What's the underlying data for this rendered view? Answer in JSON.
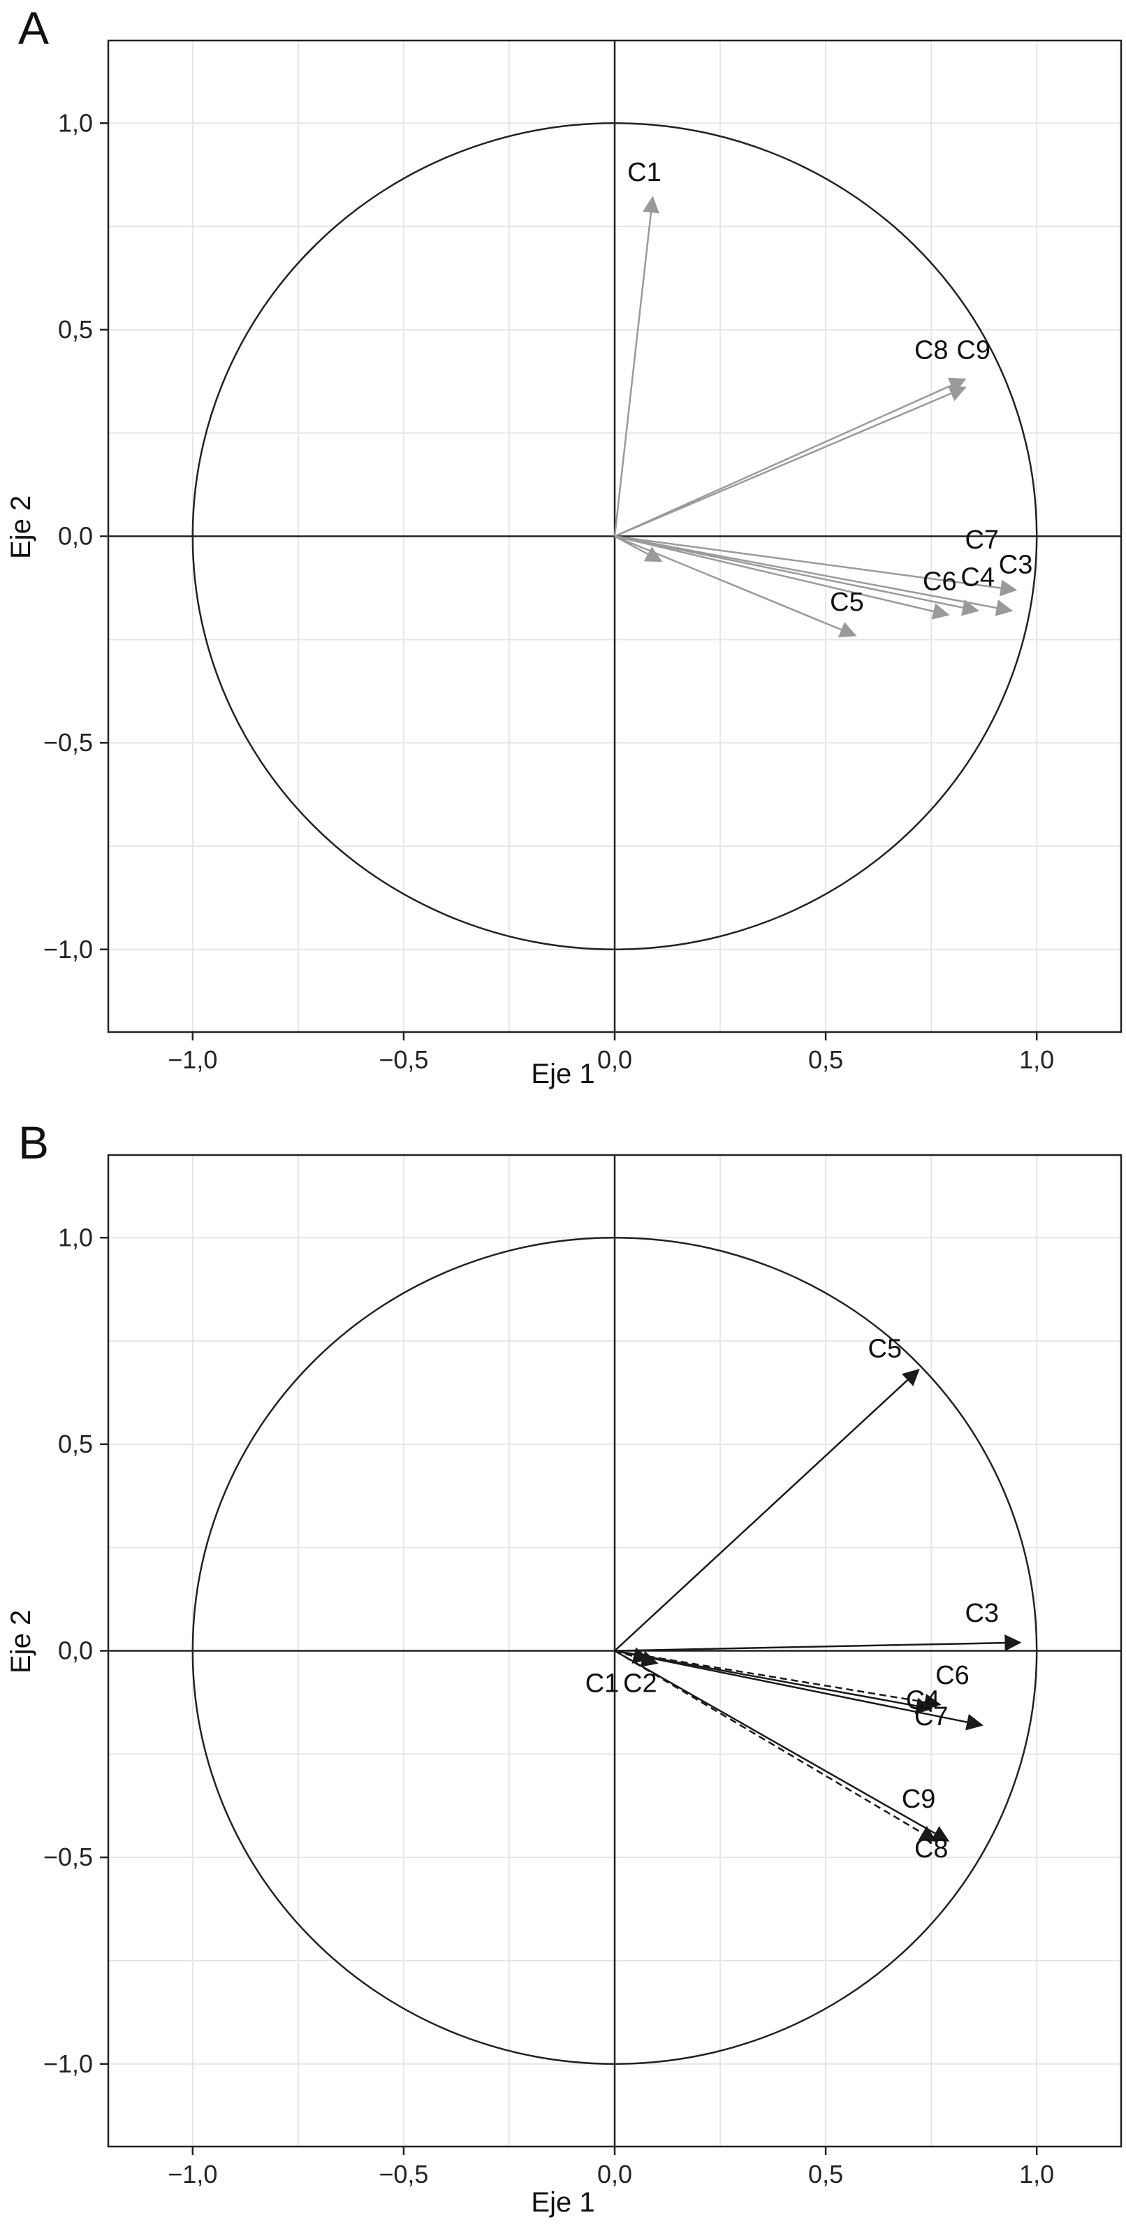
{
  "chart_data": [
    {
      "type": "scatter",
      "panel_label": "A",
      "xlabel": "Eje 1",
      "ylabel": "Eje 2",
      "xlim": [
        -1.2,
        1.2
      ],
      "ylim": [
        -1.2,
        1.2
      ],
      "xticks": [
        -1.0,
        -0.5,
        0.0,
        0.5,
        1.0
      ],
      "xtick_labels": [
        "−1,0",
        "−0,5",
        "0,0",
        "0,5",
        "1,0"
      ],
      "yticks": [
        -1.0,
        -0.5,
        0.0,
        0.5,
        1.0
      ],
      "ytick_labels": [
        "−1,0",
        "−0,5",
        "0,0",
        "0,5",
        "1,0"
      ],
      "grid": true,
      "unit_circle": true,
      "arrow_color": "#9a9a9a",
      "vectors": [
        {
          "label": "C1",
          "x": 0.09,
          "y": 0.82
        },
        {
          "label": "C2",
          "x": 0.11,
          "y": -0.06
        },
        {
          "label": "C3",
          "x": 0.94,
          "y": -0.18
        },
        {
          "label": "C4",
          "x": 0.86,
          "y": -0.18
        },
        {
          "label": "C5",
          "x": 0.57,
          "y": -0.24
        },
        {
          "label": "C6",
          "x": 0.79,
          "y": -0.19
        },
        {
          "label": "C7",
          "x": 0.95,
          "y": -0.13
        },
        {
          "label": "C8",
          "x": 0.83,
          "y": 0.38
        },
        {
          "label": "C9",
          "x": 0.83,
          "y": 0.36
        }
      ],
      "labels": [
        {
          "text": "C1",
          "x": 0.03,
          "y": 0.86
        },
        {
          "text": "C8",
          "x": 0.71,
          "y": 0.43
        },
        {
          "text": "C9",
          "x": 0.81,
          "y": 0.43
        },
        {
          "text": "C7",
          "x": 0.83,
          "y": -0.03
        },
        {
          "text": "C3",
          "x": 0.91,
          "y": -0.09
        },
        {
          "text": "C4",
          "x": 0.82,
          "y": -0.12
        },
        {
          "text": "C6",
          "x": 0.73,
          "y": -0.13
        },
        {
          "text": "C5",
          "x": 0.51,
          "y": -0.18
        }
      ]
    },
    {
      "type": "scatter",
      "panel_label": "B",
      "xlabel": "Eje 1",
      "ylabel": "Eje 2",
      "xlim": [
        -1.2,
        1.2
      ],
      "ylim": [
        -1.2,
        1.2
      ],
      "xticks": [
        -1.0,
        -0.5,
        0.0,
        0.5,
        1.0
      ],
      "xtick_labels": [
        "−1,0",
        "−0,5",
        "0,0",
        "0,5",
        "1,0"
      ],
      "yticks": [
        -1.0,
        -0.5,
        0.0,
        0.5,
        1.0
      ],
      "ytick_labels": [
        "−1,0",
        "−0,5",
        "0,0",
        "0,5",
        "1,0"
      ],
      "grid": true,
      "unit_circle": true,
      "arrow_color": "#1a1a1a",
      "vectors": [
        {
          "label": "C3",
          "x": 0.96,
          "y": 0.02,
          "dashed": false
        },
        {
          "label": "C5",
          "x": 0.72,
          "y": 0.68,
          "dashed": false
        },
        {
          "label": "C4",
          "x": 0.75,
          "y": -0.14,
          "dashed": false
        },
        {
          "label": "C6",
          "x": 0.77,
          "y": -0.13,
          "dashed": true
        },
        {
          "label": "C7",
          "x": 0.87,
          "y": -0.18,
          "dashed": false
        },
        {
          "label": "C9",
          "x": 0.79,
          "y": -0.46,
          "dashed": false
        },
        {
          "label": "C8",
          "x": 0.76,
          "y": -0.46,
          "dashed": true
        },
        {
          "label": "C1",
          "x": 0.08,
          "y": -0.02,
          "dashed": true
        },
        {
          "label": "C2",
          "x": 0.1,
          "y": -0.03,
          "dashed": true
        }
      ],
      "labels": [
        {
          "text": "C5",
          "x": 0.6,
          "y": 0.71
        },
        {
          "text": "C3",
          "x": 0.83,
          "y": 0.07
        },
        {
          "text": "C6",
          "x": 0.76,
          "y": -0.08
        },
        {
          "text": "C4",
          "x": 0.69,
          "y": -0.14
        },
        {
          "text": "C7",
          "x": 0.71,
          "y": -0.18
        },
        {
          "text": "C9",
          "x": 0.68,
          "y": -0.38
        },
        {
          "text": "C8",
          "x": 0.71,
          "y": -0.5
        },
        {
          "text": "C1",
          "x": -0.07,
          "y": -0.1
        },
        {
          "text": "C2",
          "x": 0.02,
          "y": -0.1
        }
      ]
    }
  ]
}
